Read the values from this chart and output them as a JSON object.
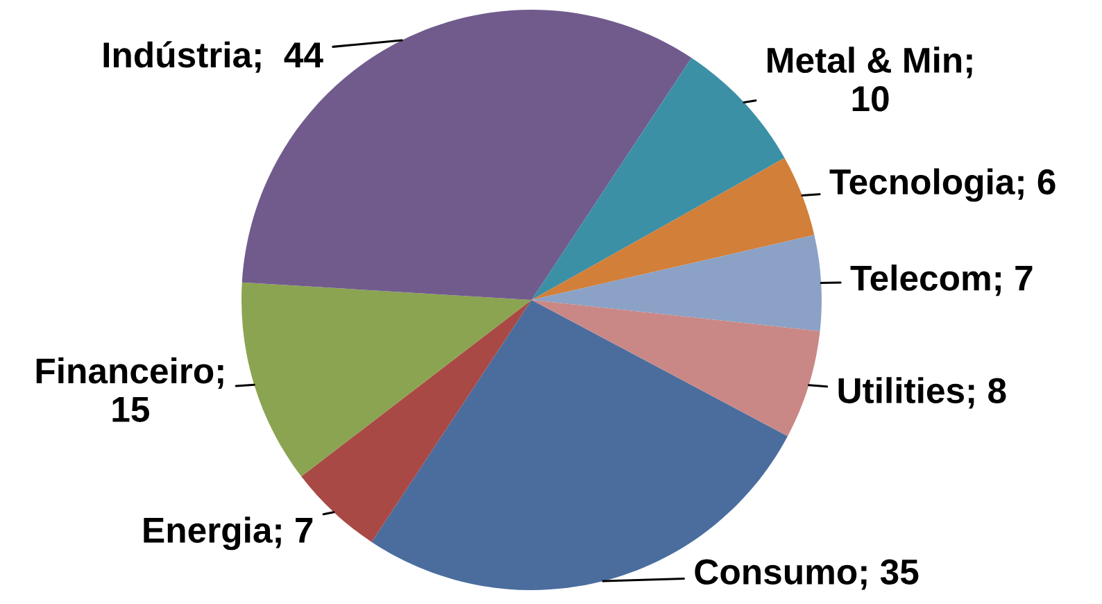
{
  "chart_data": {
    "type": "pie",
    "values": [
      35,
      7,
      15,
      44,
      10,
      6,
      7,
      8
    ],
    "colors": [
      "#4a6d9e",
      "#a94945",
      "#8ba451",
      "#715b8d",
      "#3b90a6",
      "#d27f3a",
      "#8ba1c6",
      "#c98886"
    ],
    "value_labels": [
      "Consumo; 35",
      "Energia; 7",
      "Financeiro;\n15",
      "Indústria;  44",
      "Metal & Min;\n10",
      "Tecnologia; 6",
      "Telecom; 7",
      "Utilities; 8"
    ]
  }
}
